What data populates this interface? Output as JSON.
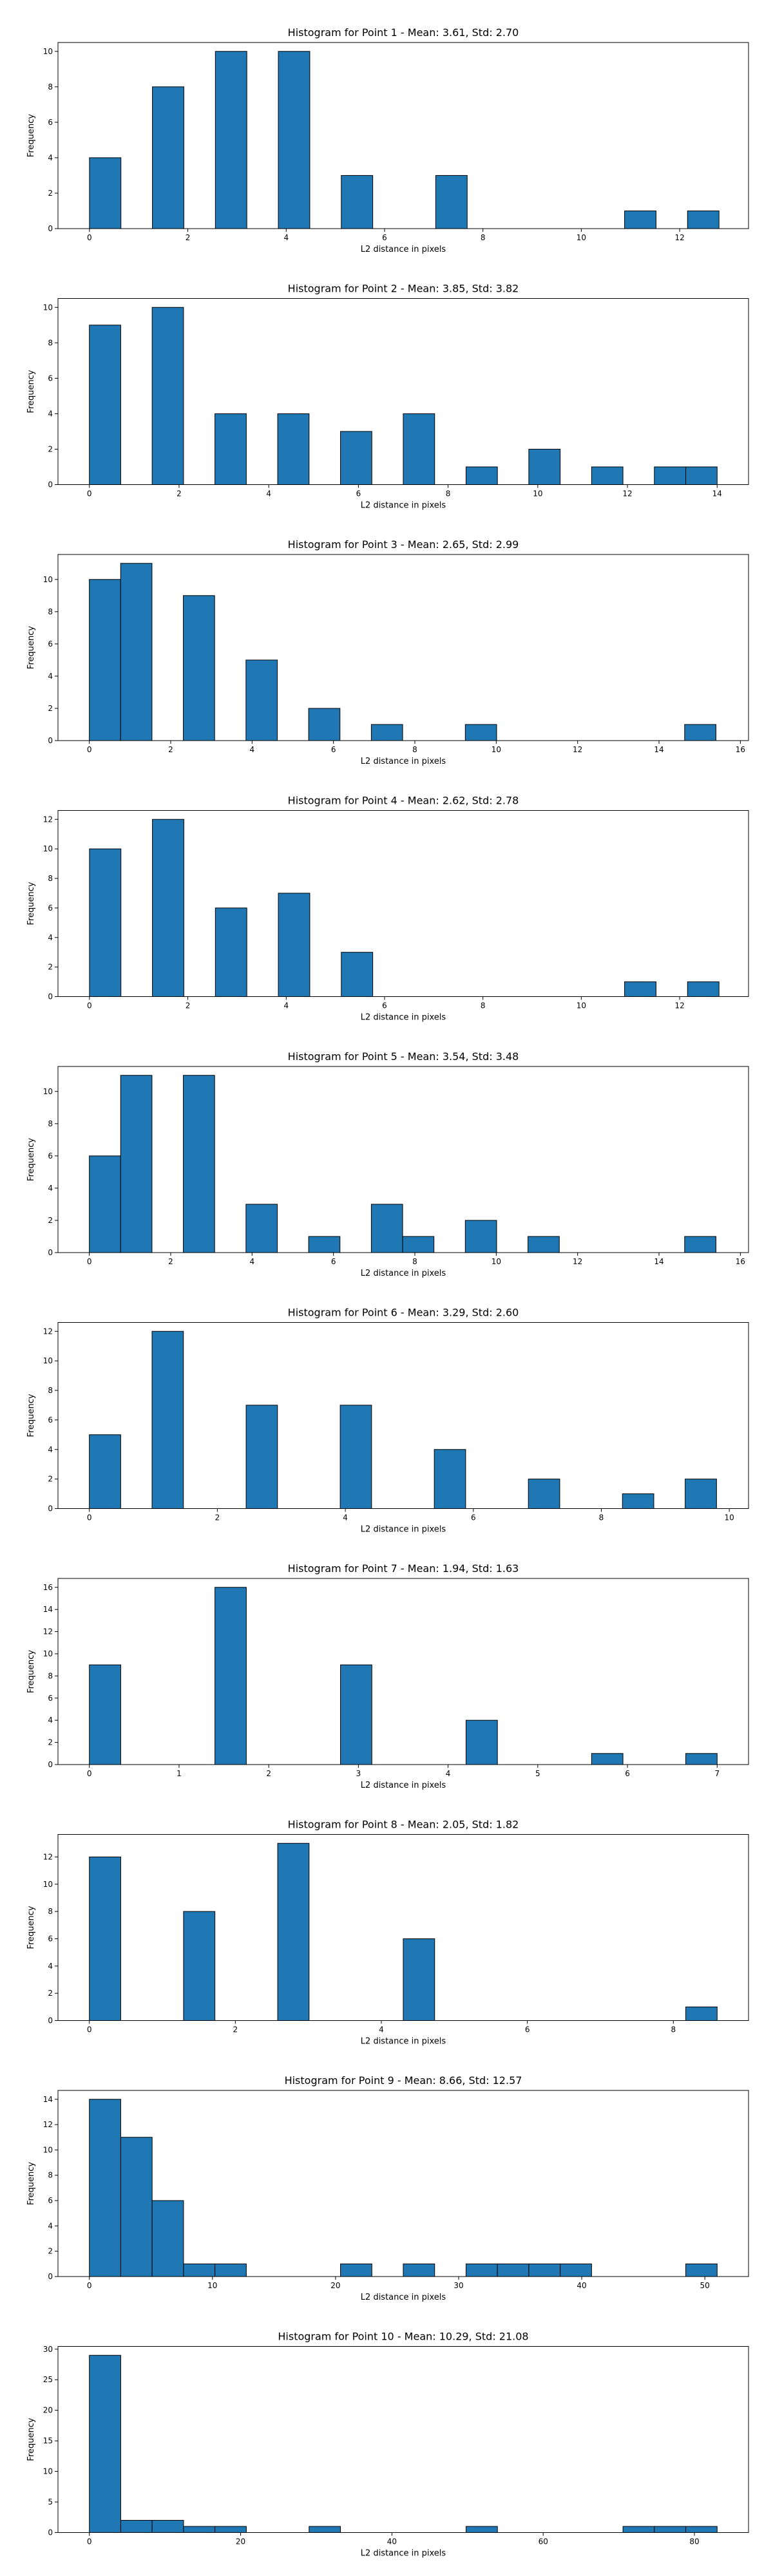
{
  "chart_data": [
    {
      "type": "bar",
      "title": "Histogram for Point 1 - Mean: 3.61, Std: 2.70",
      "xlabel": "L2 distance in pixels",
      "ylabel": "Frequency",
      "xlim": [
        -0.64,
        13.4
      ],
      "ylim": [
        0,
        10.5
      ],
      "xticks": [
        0,
        2,
        4,
        6,
        8,
        10,
        12
      ],
      "yticks": [
        0,
        2,
        4,
        6,
        8,
        10
      ],
      "bins": [
        [
          0.0,
          0.64,
          4
        ],
        [
          1.28,
          1.92,
          8
        ],
        [
          2.56,
          3.2,
          10
        ],
        [
          3.84,
          4.48,
          10
        ],
        [
          5.12,
          5.76,
          3
        ],
        [
          7.04,
          7.68,
          3
        ],
        [
          10.88,
          11.52,
          1
        ],
        [
          12.16,
          12.8,
          1
        ]
      ],
      "color": "#1f77b4"
    },
    {
      "type": "bar",
      "title": "Histogram for Point 2 - Mean: 3.85, Std: 3.82",
      "xlabel": "L2 distance in pixels",
      "ylabel": "Frequency",
      "xlim": [
        -0.7,
        14.7
      ],
      "ylim": [
        0,
        10.5
      ],
      "xticks": [
        0,
        2,
        4,
        6,
        8,
        10,
        12,
        14
      ],
      "yticks": [
        0,
        2,
        4,
        6,
        8,
        10
      ],
      "bins": [
        [
          0.0,
          0.7,
          9
        ],
        [
          1.4,
          2.1,
          10
        ],
        [
          2.8,
          3.5,
          4
        ],
        [
          4.2,
          4.9,
          4
        ],
        [
          5.6,
          6.3,
          3
        ],
        [
          7.0,
          7.7,
          4
        ],
        [
          8.4,
          9.1,
          1
        ],
        [
          9.8,
          10.5,
          2
        ],
        [
          11.2,
          11.9,
          1
        ],
        [
          12.6,
          13.3,
          1
        ],
        [
          13.3,
          14.0,
          1
        ]
      ],
      "color": "#1f77b4"
    },
    {
      "type": "bar",
      "title": "Histogram for Point 3 - Mean: 2.65, Std: 2.99",
      "xlabel": "L2 distance in pixels",
      "ylabel": "Frequency",
      "xlim": [
        -0.77,
        16.2
      ],
      "ylim": [
        0,
        11.55
      ],
      "xticks": [
        0,
        2,
        4,
        6,
        8,
        10,
        12,
        14,
        16
      ],
      "yticks": [
        0,
        2,
        4,
        6,
        8,
        10
      ],
      "bins": [
        [
          0.0,
          0.77,
          10
        ],
        [
          0.77,
          1.54,
          11
        ],
        [
          2.31,
          3.08,
          9
        ],
        [
          3.85,
          4.62,
          5
        ],
        [
          5.39,
          6.16,
          2
        ],
        [
          6.93,
          7.7,
          1
        ],
        [
          9.24,
          10.01,
          1
        ],
        [
          14.63,
          15.4,
          1
        ]
      ],
      "color": "#1f77b4"
    },
    {
      "type": "bar",
      "title": "Histogram for Point 4 - Mean: 2.62, Std: 2.78",
      "xlabel": "L2 distance in pixels",
      "ylabel": "Frequency",
      "xlim": [
        -0.64,
        13.4
      ],
      "ylim": [
        0,
        12.6
      ],
      "xticks": [
        0,
        2,
        4,
        6,
        8,
        10,
        12
      ],
      "yticks": [
        0,
        2,
        4,
        6,
        8,
        10,
        12
      ],
      "bins": [
        [
          0.0,
          0.64,
          10
        ],
        [
          1.28,
          1.92,
          12
        ],
        [
          2.56,
          3.2,
          6
        ],
        [
          3.84,
          4.48,
          7
        ],
        [
          5.12,
          5.76,
          3
        ],
        [
          10.88,
          11.52,
          1
        ],
        [
          12.16,
          12.8,
          1
        ]
      ],
      "color": "#1f77b4"
    },
    {
      "type": "bar",
      "title": "Histogram for Point 5 - Mean: 3.54, Std: 3.48",
      "xlabel": "L2 distance in pixels",
      "ylabel": "Frequency",
      "xlim": [
        -0.77,
        16.2
      ],
      "ylim": [
        0,
        11.55
      ],
      "xticks": [
        0,
        2,
        4,
        6,
        8,
        10,
        12,
        14,
        16
      ],
      "yticks": [
        0,
        2,
        4,
        6,
        8,
        10
      ],
      "bins": [
        [
          0.0,
          0.77,
          6
        ],
        [
          0.77,
          1.54,
          11
        ],
        [
          2.31,
          3.08,
          11
        ],
        [
          3.85,
          4.62,
          3
        ],
        [
          5.39,
          6.16,
          1
        ],
        [
          6.93,
          7.7,
          3
        ],
        [
          7.7,
          8.47,
          1
        ],
        [
          9.24,
          10.01,
          2
        ],
        [
          10.78,
          11.55,
          1
        ],
        [
          14.63,
          15.4,
          1
        ]
      ],
      "color": "#1f77b4"
    },
    {
      "type": "bar",
      "title": "Histogram for Point 6 - Mean: 3.29, Std: 2.60",
      "xlabel": "L2 distance in pixels",
      "ylabel": "Frequency",
      "xlim": [
        -0.49,
        10.3
      ],
      "ylim": [
        0,
        12.6
      ],
      "xticks": [
        0,
        2,
        4,
        6,
        8,
        10
      ],
      "yticks": [
        0,
        2,
        4,
        6,
        8,
        10,
        12
      ],
      "bins": [
        [
          0.0,
          0.49,
          5
        ],
        [
          0.98,
          1.47,
          12
        ],
        [
          2.45,
          2.94,
          7
        ],
        [
          3.92,
          4.41,
          7
        ],
        [
          5.39,
          5.88,
          4
        ],
        [
          6.86,
          7.35,
          2
        ],
        [
          8.33,
          8.82,
          1
        ],
        [
          9.31,
          9.8,
          2
        ]
      ],
      "color": "#1f77b4"
    },
    {
      "type": "bar",
      "title": "Histogram for Point 7 - Mean: 1.94, Std: 1.63",
      "xlabel": "L2 distance in pixels",
      "ylabel": "Frequency",
      "xlim": [
        -0.35,
        7.35
      ],
      "ylim": [
        0,
        16.8
      ],
      "xticks": [
        0,
        1,
        2,
        3,
        4,
        5,
        6,
        7
      ],
      "yticks": [
        0,
        2,
        4,
        6,
        8,
        10,
        12,
        14,
        16
      ],
      "bins": [
        [
          0.0,
          0.35,
          9
        ],
        [
          1.4,
          1.75,
          16
        ],
        [
          2.8,
          3.15,
          9
        ],
        [
          4.2,
          4.55,
          4
        ],
        [
          5.6,
          5.95,
          1
        ],
        [
          6.65,
          7.0,
          1
        ]
      ],
      "color": "#1f77b4"
    },
    {
      "type": "bar",
      "title": "Histogram for Point 8 - Mean: 2.05, Std: 1.82",
      "xlabel": "L2 distance in pixels",
      "ylabel": "Frequency",
      "xlim": [
        -0.43,
        9.03
      ],
      "ylim": [
        0,
        13.65
      ],
      "xticks": [
        0,
        2,
        4,
        6,
        8
      ],
      "yticks": [
        0,
        2,
        4,
        6,
        8,
        10,
        12
      ],
      "bins": [
        [
          0.0,
          0.43,
          12
        ],
        [
          1.29,
          1.72,
          8
        ],
        [
          2.58,
          3.01,
          13
        ],
        [
          4.3,
          4.73,
          6
        ],
        [
          8.17,
          8.6,
          1
        ]
      ],
      "color": "#1f77b4"
    },
    {
      "type": "bar",
      "title": "Histogram for Point 9 - Mean: 8.66, Std: 12.57",
      "xlabel": "L2 distance in pixels",
      "ylabel": "Frequency",
      "xlim": [
        -2.55,
        53.55
      ],
      "ylim": [
        0,
        14.7
      ],
      "xticks": [
        0,
        10,
        20,
        30,
        40,
        50
      ],
      "yticks": [
        0,
        2,
        4,
        6,
        8,
        10,
        12,
        14
      ],
      "bins": [
        [
          0.0,
          2.55,
          14
        ],
        [
          2.55,
          5.1,
          11
        ],
        [
          5.1,
          7.65,
          6
        ],
        [
          7.65,
          10.2,
          1
        ],
        [
          10.2,
          12.75,
          1
        ],
        [
          20.4,
          22.95,
          1
        ],
        [
          25.5,
          28.05,
          1
        ],
        [
          30.6,
          33.15,
          1
        ],
        [
          33.15,
          35.7,
          1
        ],
        [
          35.7,
          38.25,
          1
        ],
        [
          38.25,
          40.8,
          1
        ],
        [
          48.45,
          51.0,
          1
        ]
      ],
      "color": "#1f77b4"
    },
    {
      "type": "bar",
      "title": "Histogram for Point 10 - Mean: 10.29, Std: 21.08",
      "xlabel": "L2 distance in pixels",
      "ylabel": "Frequency",
      "xlim": [
        -4.15,
        87.15
      ],
      "ylim": [
        0,
        30.45
      ],
      "xticks": [
        0,
        20,
        40,
        60,
        80
      ],
      "yticks": [
        0,
        5,
        10,
        15,
        20,
        25,
        30
      ],
      "bins": [
        [
          0.0,
          4.15,
          29
        ],
        [
          4.15,
          8.3,
          2
        ],
        [
          8.3,
          12.45,
          2
        ],
        [
          12.45,
          16.6,
          1
        ],
        [
          16.6,
          20.75,
          1
        ],
        [
          29.05,
          33.2,
          1
        ],
        [
          49.8,
          53.95,
          1
        ],
        [
          70.55,
          74.7,
          1
        ],
        [
          74.7,
          78.85,
          1
        ],
        [
          78.85,
          83.0,
          1
        ]
      ],
      "color": "#1f77b4"
    }
  ]
}
